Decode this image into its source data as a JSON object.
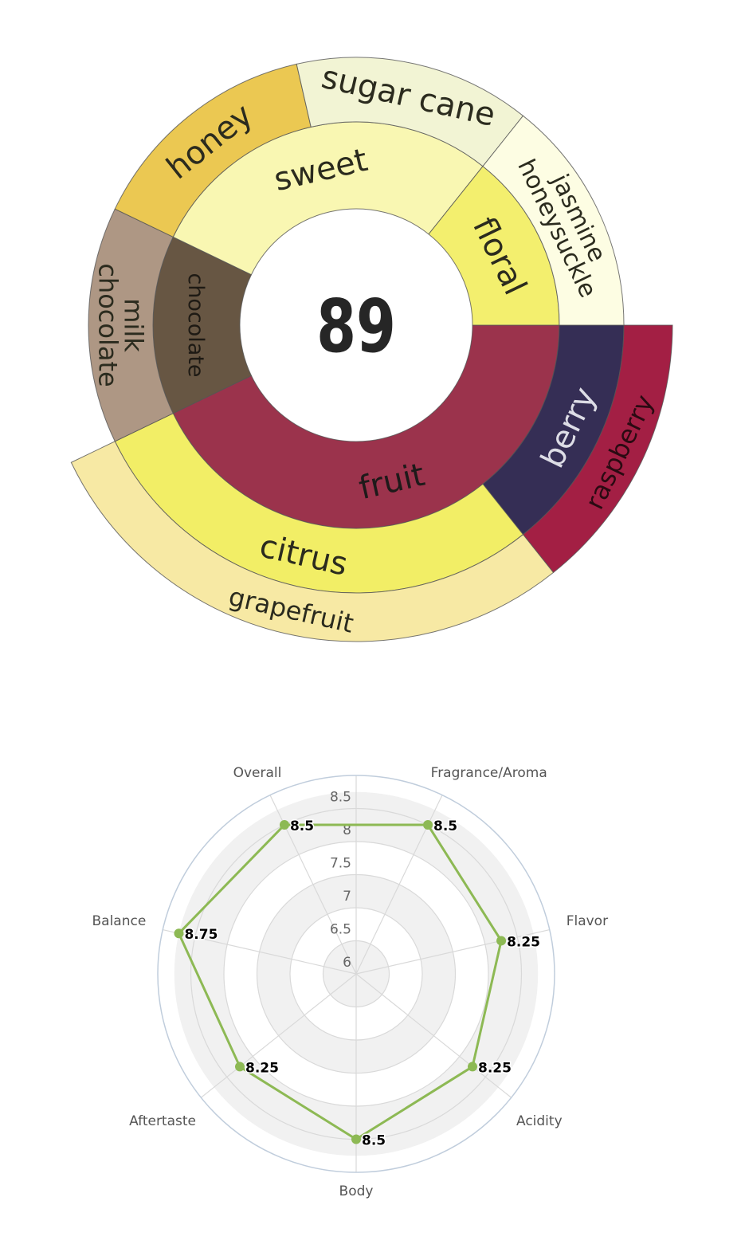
{
  "chart_data": [
    {
      "type": "sunburst",
      "center_label": "89",
      "start_angle_deg": 90,
      "direction": "clockwise",
      "nodes": [
        {
          "name": "fruit",
          "color": "#9B334C",
          "text_color": "#1e1a1a",
          "children": [
            {
              "name": "berry",
              "color": "#352E55",
              "text_color": "#dddde6",
              "children": [
                {
                  "name": "raspberry",
                  "value": 1,
                  "color": "#A31F44",
                  "text_color": "#2a0a12"
                }
              ]
            },
            {
              "name": "citrus",
              "color": "#F2EE66",
              "text_color": "#2b2b1e",
              "children": [
                {
                  "name": "grapefruit",
                  "value": 2,
                  "color": "#F7E9A4",
                  "text_color": "#2b2b1e"
                }
              ]
            }
          ]
        },
        {
          "name": "chocolate",
          "color": "#675643",
          "text_color": "#1e1a14",
          "children": [
            {
              "name": "milk chocolate",
              "value": 1,
              "color": "#AE9784",
              "text_color": "#2b2b1e"
            }
          ]
        },
        {
          "name": "sweet",
          "color": "#F9F7B2",
          "text_color": "#2b2b1e",
          "children": [
            {
              "name": "honey",
              "value": 1,
              "color": "#EBC852",
              "text_color": "#2b2b1e"
            },
            {
              "name": "sugar cane",
              "value": 1,
              "color": "#F2F4D4",
              "text_color": "#2b2b1e"
            }
          ]
        },
        {
          "name": "floral",
          "color": "#F3EF6E",
          "text_color": "#2b2b1e",
          "children": [
            {
              "name": "jasmine honeysuckle",
              "value": 1,
              "color": "#FDFDE3",
              "text_color": "#2b2b1e"
            }
          ]
        }
      ]
    },
    {
      "type": "radar",
      "categories": [
        "Fragrance/Aroma",
        "Flavor",
        "Acidity",
        "Body",
        "Aftertaste",
        "Balance",
        "Overall"
      ],
      "values": [
        8.5,
        8.25,
        8.25,
        8.5,
        8.25,
        8.75,
        8.5
      ],
      "data_labels": [
        "8.5",
        "8.25",
        "8.25",
        "8.5",
        "8.25",
        "8.75",
        "8.5"
      ],
      "rlim": [
        6,
        9
      ],
      "ticks": [
        "6",
        "6.5",
        "7",
        "7.5",
        "8",
        "8.5"
      ],
      "tick_values": [
        6,
        6.5,
        7,
        7.5,
        8,
        8.5
      ],
      "bands": [
        [
          6,
          6.5
        ],
        [
          7,
          7.5
        ],
        [
          8,
          8.75
        ]
      ],
      "grid": true,
      "series_color": "#8DB954",
      "band_color": "#F1F1F1",
      "grid_color": "#D9D9D9",
      "outer_circle_color": "#C0CDDC"
    }
  ]
}
